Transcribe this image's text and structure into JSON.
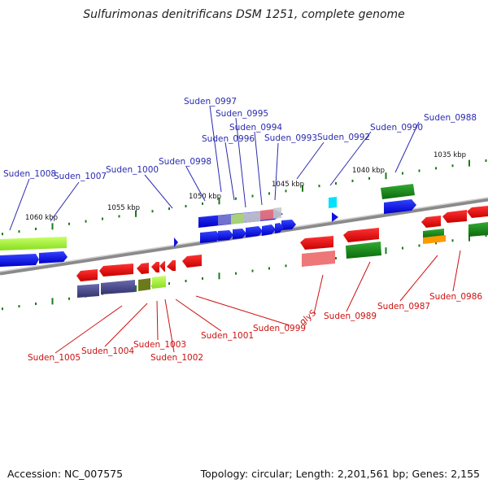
{
  "title": "Sulfurimonas denitrificans DSM 1251, complete genome",
  "footer": {
    "accession": "Accession: NC_007575",
    "topology": "Topology: circular; Length: 2,201,561 bp; Genes: 2,155"
  },
  "colors": {
    "backbone": "#8a8a8a",
    "tick": "#1a7a1a",
    "label_forward": "#2a2ab0",
    "label_reverse": "#cc1111"
  },
  "kbp_labels": [
    "1035 kbp",
    "1040 kbp",
    "1045 kbp",
    "1050 kbp",
    "1055 kbp",
    "1060 kbp"
  ],
  "genes_forward": [
    "Suden_0988",
    "Suden_0990",
    "Suden_0992",
    "Suden_0993",
    "Suden_0994",
    "Suden_0995",
    "Suden_0996",
    "Suden_0997",
    "Suden_0998",
    "Suden_1000",
    "Suden_1007",
    "Suden_1008"
  ],
  "genes_reverse": [
    "Suden_0986",
    "Suden_0987",
    "Suden_0989",
    "glyS",
    "Suden_0999",
    "Suden_1001",
    "Suden_1002",
    "Suden_1003",
    "Suden_1004",
    "Suden_1005"
  ]
}
